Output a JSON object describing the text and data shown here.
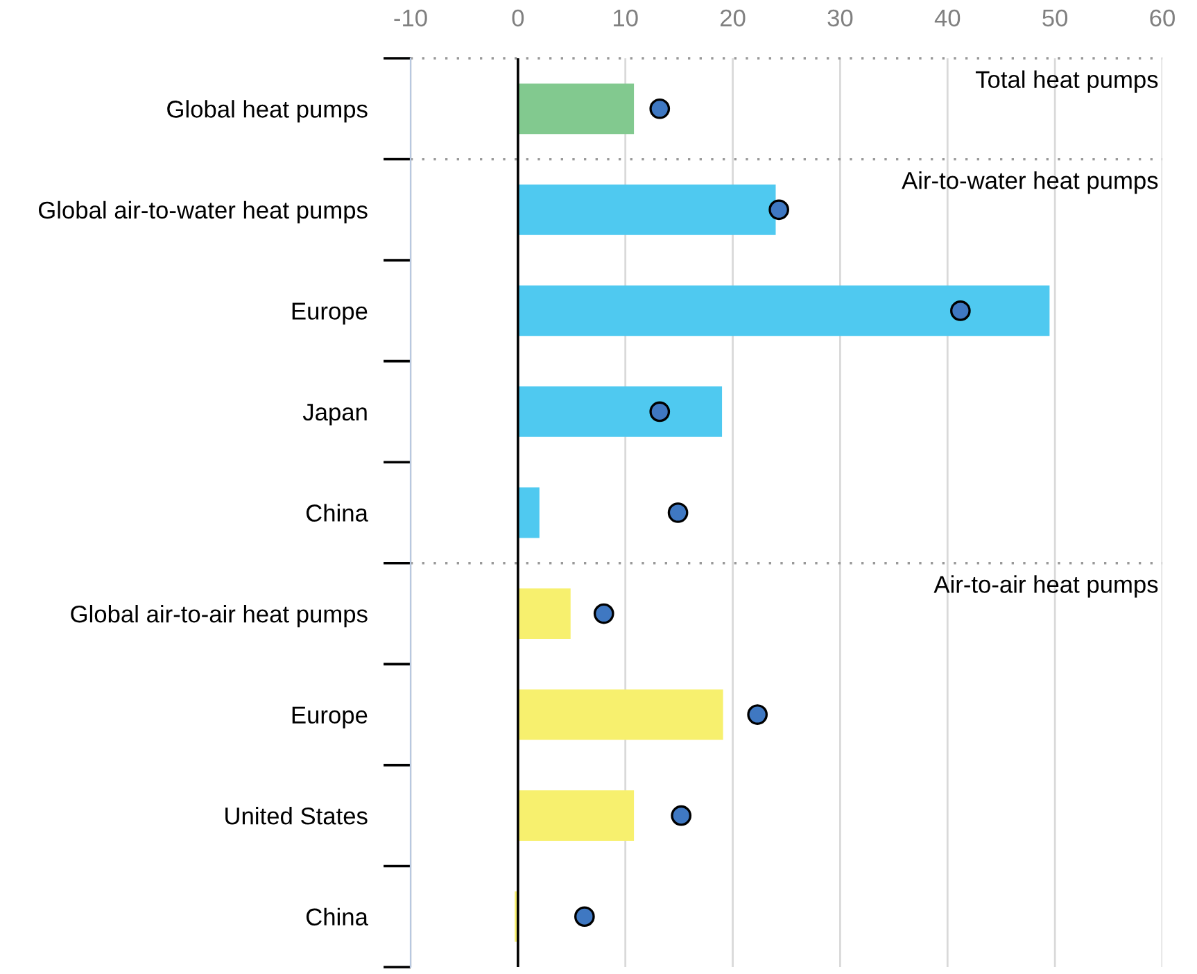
{
  "chart_data": {
    "type": "bar",
    "orientation": "horizontal",
    "categories": [
      "Global heat pumps",
      "Global air-to-water heat pumps",
      "Europe",
      "Japan",
      "China",
      "Global air-to-air heat pumps",
      "Europe",
      "United States",
      "China"
    ],
    "series": [
      {
        "colors": [
          "#82c98f",
          "#4fc9f0",
          "#4fc9f0",
          "#4fc9f0",
          "#4fc9f0",
          "#f7f06e",
          "#f7f06e",
          "#f7f06e",
          "#f7f06e"
        ],
        "values": [
          10.8,
          24.0,
          49.5,
          19.0,
          2.0,
          4.9,
          19.1,
          10.8,
          -0.3
        ]
      },
      {
        "type": "scatter",
        "color": "#3f78c2",
        "marker": "circle",
        "values": [
          13.2,
          24.3,
          41.2,
          13.2,
          14.9,
          8.0,
          22.3,
          15.2,
          6.2
        ]
      }
    ],
    "xlim": [
      -10,
      60
    ],
    "xticks": [
      -10,
      0,
      10,
      20,
      30,
      40,
      50,
      60
    ],
    "grid": "x",
    "ref_lines": [
      {
        "axis": "x",
        "value": 0,
        "color": "#000000",
        "line_style": "solid"
      }
    ],
    "annotations": [
      "Total heat pumps",
      "Air-to-water heat pumps",
      "Air-to-air heat pumps"
    ]
  }
}
